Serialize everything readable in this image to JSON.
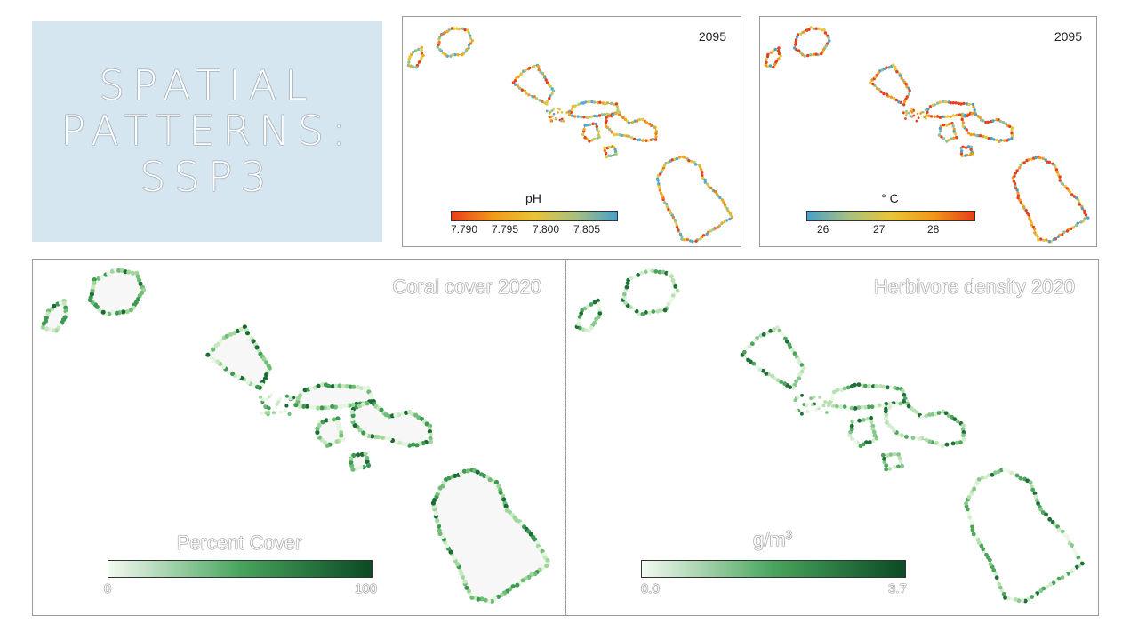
{
  "slide": {
    "title": "SPATIAL\nPATTERNS:\nSSP3"
  },
  "panels": {
    "ph": {
      "year": "2095",
      "legend_title": "pH",
      "ticks": [
        "7.790",
        "7.795",
        "7.800",
        "7.805"
      ],
      "colors": [
        "#e8401c",
        "#f09a1a",
        "#e8c43a",
        "#a8c080",
        "#4aa0c8"
      ]
    },
    "temp": {
      "year": "2095",
      "legend_title": "° C",
      "ticks": [
        "26",
        "27",
        "28"
      ],
      "colors": [
        "#4aa0c8",
        "#a8c080",
        "#e8c43a",
        "#f09a1a",
        "#e8401c"
      ]
    },
    "coral": {
      "title": "Coral cover 2020",
      "legend_title": "Percent Cover",
      "tick_min": "0",
      "tick_max": "100",
      "colors": [
        "#f4faf2",
        "#48a55c",
        "#0b4a24"
      ]
    },
    "herbivore": {
      "title": "Herbivore density 2020",
      "legend_title_base": "g/m",
      "legend_title_sup": "3",
      "tick_min": "0.0",
      "tick_max": "3.7",
      "colors": [
        "#f4faf2",
        "#48a55c",
        "#0b4a24"
      ]
    }
  }
}
